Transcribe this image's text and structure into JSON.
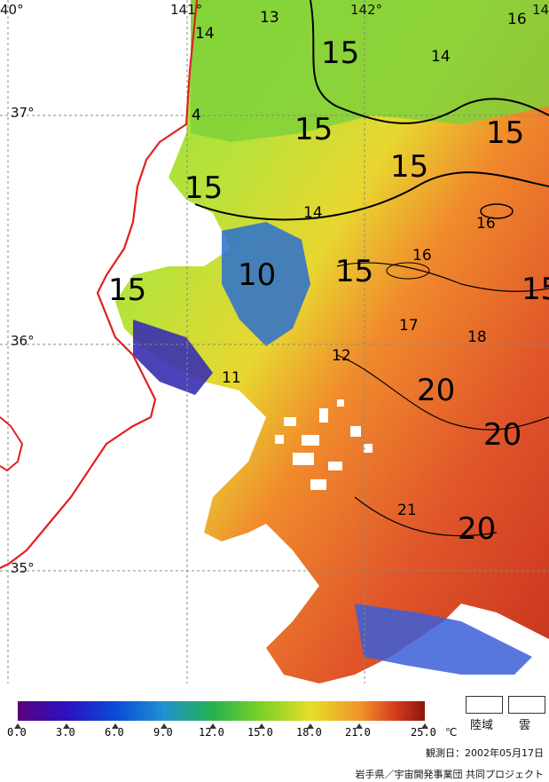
{
  "coordinates": {
    "lon_140": "40°",
    "lon_141": "141°",
    "lon_142": "142°",
    "lon_143": "14",
    "lat_37": "37°",
    "lat_36": "36°",
    "lat_35": "35°"
  },
  "isotherm_labels": [
    "13",
    "14",
    "15",
    "14",
    "16",
    "4",
    "15",
    "15",
    "15",
    "15",
    "14",
    "16",
    "15",
    "16",
    "10",
    "15",
    "15",
    "17",
    "18",
    "12",
    "11",
    "20",
    "20",
    "21",
    "20"
  ],
  "legend": {
    "ticks": [
      "0.0",
      "3.0",
      "6.0",
      "9.0",
      "12.0",
      "15.0",
      "18.0",
      "21.0",
      "25.0"
    ],
    "unit": "℃",
    "colors": [
      "#5a007e",
      "#2b12c0",
      "#0a4cd6",
      "#1f93d0",
      "#24b24c",
      "#7fd126",
      "#e6df28",
      "#f0952a",
      "#d53a1e",
      "#8d150e"
    ]
  },
  "key": {
    "land": "陸域",
    "cloud": "雲"
  },
  "footer": {
    "date": "観測日：2002年05月17日",
    "credit": "岩手県／宇宙開発事業団 共同プロジェクト"
  },
  "map_colors": {
    "coastline": "#e02020",
    "grid": "#888888",
    "contour": "#000000"
  }
}
